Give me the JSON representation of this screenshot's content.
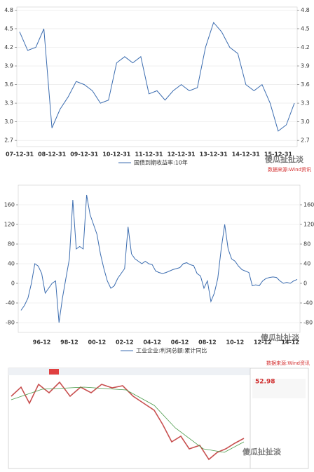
{
  "chart_data": [
    {
      "type": "line",
      "legend": "国债到期收益率:10年",
      "categories": [
        "07-12-31",
        null,
        null,
        null,
        "08-12-31",
        null,
        null,
        null,
        "09-12-31",
        null,
        null,
        null,
        "10-12-31",
        null,
        null,
        null,
        "11-12-31",
        null,
        null,
        null,
        "12-12-31",
        null,
        null,
        null,
        "13-12-31",
        null,
        null,
        null,
        "14-12-31",
        null,
        null,
        null,
        "15-12-31",
        null,
        null
      ],
      "series": [
        {
          "name": "国债到期收益率:10年",
          "color": "#3c6db0",
          "values": [
            4.45,
            4.15,
            4.2,
            4.5,
            2.9,
            3.2,
            3.4,
            3.65,
            3.6,
            3.5,
            3.3,
            3.35,
            3.95,
            4.05,
            3.95,
            4.05,
            3.45,
            3.5,
            3.35,
            3.5,
            3.6,
            3.5,
            3.55,
            4.2,
            4.6,
            4.45,
            4.2,
            4.1,
            3.6,
            3.5,
            3.6,
            3.3,
            2.85,
            2.95,
            3.3
          ]
        }
      ],
      "ylim": [
        2.6,
        4.85
      ],
      "yticks": [
        {
          "value": 2.7,
          "label": "2.7"
        },
        {
          "value": 3,
          "label": "3.0"
        },
        {
          "value": 3.3,
          "label": "3.3"
        },
        {
          "value": 3.6,
          "label": "3.6"
        },
        {
          "value": 3.9,
          "label": "3.9"
        },
        {
          "value": 4.2,
          "label": "4.2"
        },
        {
          "value": 4.5,
          "label": "4.5"
        },
        {
          "value": 4.8,
          "label": "4.8"
        }
      ],
      "grid": true
    },
    {
      "type": "line",
      "legend": "工业企业:利润总额:累计同比",
      "categories": [
        null,
        null,
        null,
        null,
        null,
        null,
        "96-12",
        null,
        null,
        null,
        null,
        null,
        null,
        null,
        "98-12",
        null,
        null,
        null,
        null,
        null,
        null,
        null,
        "00-12",
        null,
        null,
        null,
        null,
        null,
        null,
        null,
        "02-12",
        null,
        null,
        null,
        null,
        null,
        null,
        null,
        "04-12",
        null,
        null,
        null,
        null,
        null,
        null,
        null,
        "06-12",
        null,
        null,
        null,
        null,
        null,
        null,
        null,
        "08-12",
        null,
        null,
        null,
        null,
        null,
        null,
        null,
        "10-12",
        null,
        null,
        null,
        null,
        null,
        null,
        null,
        "12-12",
        null,
        null,
        null,
        null,
        null,
        null,
        null,
        "14-12",
        null,
        null
      ],
      "series": [
        {
          "name": "工业企业:利润总额:累计同比",
          "color": "#3c6db0",
          "values": [
            -55,
            -45,
            -30,
            0,
            40,
            35,
            20,
            -20,
            -10,
            0,
            5,
            -80,
            -30,
            10,
            50,
            170,
            70,
            75,
            70,
            180,
            140,
            120,
            100,
            60,
            30,
            5,
            -10,
            -5,
            10,
            20,
            30,
            115,
            60,
            50,
            45,
            40,
            45,
            40,
            38,
            25,
            22,
            20,
            22,
            25,
            28,
            30,
            32,
            40,
            42,
            38,
            36,
            20,
            15,
            -10,
            5,
            -37,
            -20,
            10,
            70,
            120,
            70,
            50,
            45,
            35,
            28,
            25,
            22,
            -5,
            -3,
            -5,
            5,
            10,
            12,
            13,
            12,
            5,
            0,
            2,
            0,
            5,
            8
          ]
        }
      ],
      "ylim": [
        -100,
        200
      ],
      "yticks": [
        -80,
        -40,
        0,
        40,
        80,
        120,
        160
      ],
      "grid": true
    }
  ],
  "watermark": "傻瓜扯扯淡",
  "source": "数据来源:Wind资讯",
  "screenshot": {
    "price": "52.98"
  }
}
